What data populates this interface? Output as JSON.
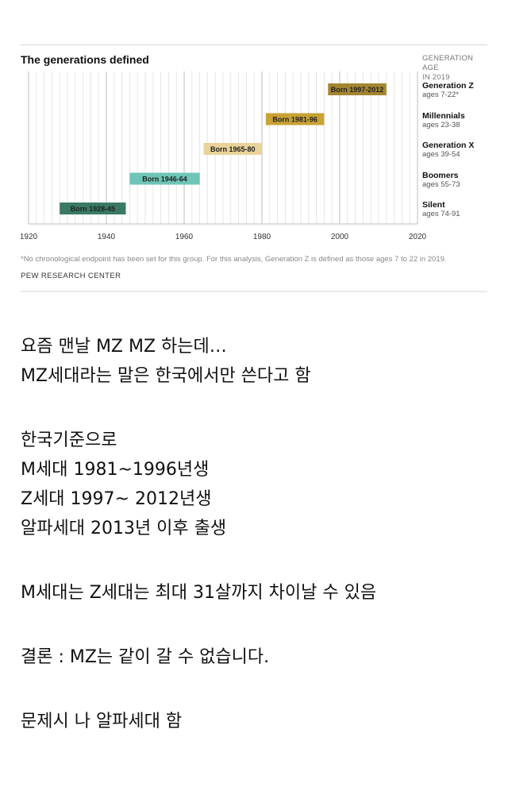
{
  "chart_data": {
    "type": "timeline",
    "title": "The generations defined",
    "age_header": [
      "GENERATION AGE",
      "IN 2019"
    ],
    "x_ticks": [
      1920,
      1940,
      1960,
      1980,
      2000,
      2020
    ],
    "xlim": [
      1920,
      2020
    ],
    "grid": "vertical lines every 2 years, darker every 20 years",
    "generations": [
      {
        "name": "Generation Z",
        "ages": "ages 7-22*",
        "start": 1997,
        "end": 2012,
        "bar_label": "Born 1997-2012",
        "color": "#a48632"
      },
      {
        "name": "Millennials",
        "ages": "ages 23-38",
        "start": 1981,
        "end": 1996,
        "bar_label": "Born 1981-96",
        "color": "#c8a233"
      },
      {
        "name": "Generation X",
        "ages": "ages 39-54",
        "start": 1965,
        "end": 1980,
        "bar_label": "Born 1965-80",
        "color": "#ead39a"
      },
      {
        "name": "Boomers",
        "ages": "ages 55-73",
        "start": 1946,
        "end": 1964,
        "bar_label": "Born 1946-64",
        "color": "#6ec5b8"
      },
      {
        "name": "Silent",
        "ages": "ages 74-91",
        "start": 1928,
        "end": 1945,
        "bar_label": "Born 1928-45",
        "color": "#3a7a64"
      }
    ],
    "footnote": "*No chronological endpoint has been set for this group. For this analysis, Generation Z is defined as those ages 7 to 22 in 2019.",
    "source": "PEW RESEARCH CENTER"
  },
  "post": {
    "line1": "요즘 맨날 MZ MZ 하는데…",
    "line2": "MZ세대라는 말은 한국에서만 쓴다고 함",
    "line3": "한국기준으로",
    "line4": "M세대 1981~1996년생",
    "line5": "Z세대 1997~ 2012년생",
    "line6": "알파세대 2013년 이후 출생",
    "line7": "M세대는 Z세대는 최대 31살까지 차이날 수 있음",
    "line8": "결론 : MZ는 같이 갈 수 없습니다.",
    "line9": "문제시 나 알파세대 함"
  }
}
